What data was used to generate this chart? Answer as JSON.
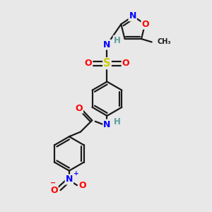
{
  "bg_color": "#e8e8e8",
  "bond_color": "#1a1a1a",
  "bond_width": 1.6,
  "atom_colors": {
    "N": "#0000ff",
    "O": "#ff0000",
    "S": "#cccc00",
    "H": "#5f9ea0",
    "C": "#1a1a1a"
  },
  "font_size": 8.5
}
